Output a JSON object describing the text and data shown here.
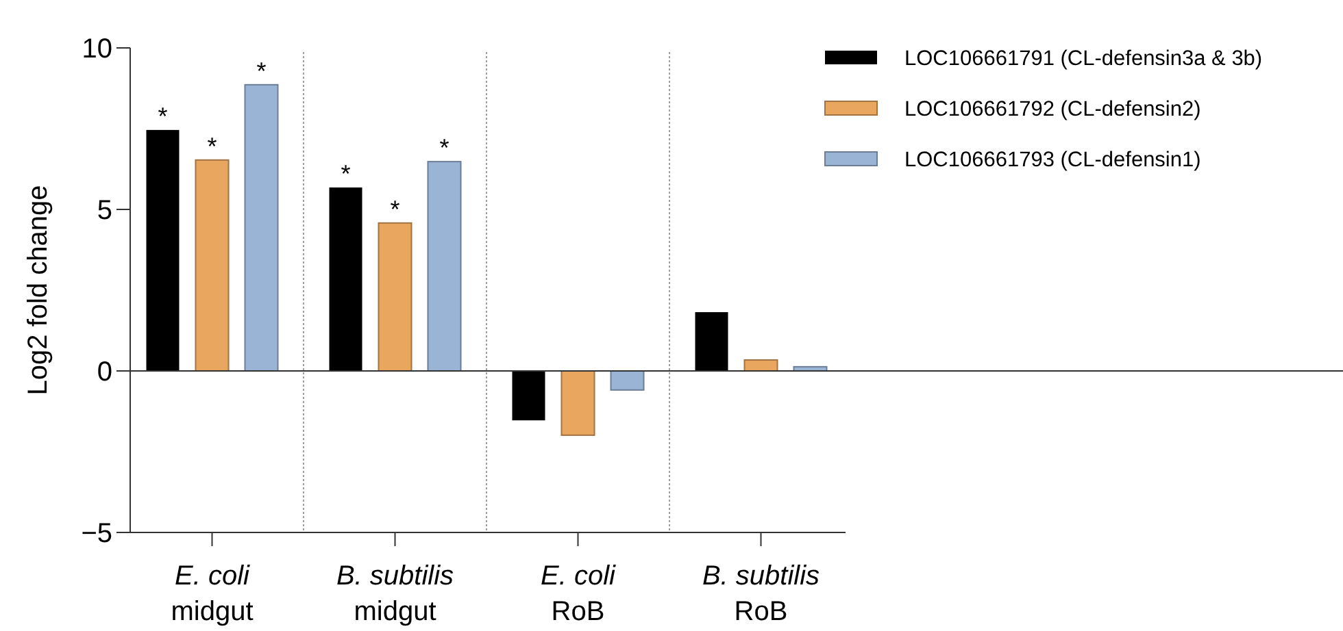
{
  "chart_data": {
    "type": "bar",
    "ylabel": "Log2 fold change",
    "categories": [
      "E. coli\nmidgut",
      "B. subtilis\nmidgut",
      "E. coli\nRoB",
      "B. subtilis\nRoB"
    ],
    "series": [
      {
        "name": "LOC106661791 (CL-defensin3a & 3b)",
        "color": "#000000",
        "values": [
          7.46,
          5.68,
          -1.53,
          1.82
        ],
        "value_labels": [
          "*",
          "*",
          null,
          null
        ]
      },
      {
        "name": "LOC106661792 (CL-defensin2)",
        "color": "#e8a65e",
        "values": [
          6.53,
          4.58,
          -1.99,
          0.34
        ],
        "value_labels": [
          "*",
          "*",
          null,
          null
        ]
      },
      {
        "name": "LOC106661793 (CL-defensin1)",
        "color": "#9ab4d6",
        "values": [
          8.86,
          6.48,
          -0.59,
          0.13
        ],
        "value_labels": [
          "*",
          "*",
          null,
          null
        ]
      }
    ],
    "ylim": [
      -5,
      10
    ],
    "yticks": [
      -5,
      0,
      5,
      10
    ],
    "grid": false,
    "legend": "top right"
  }
}
